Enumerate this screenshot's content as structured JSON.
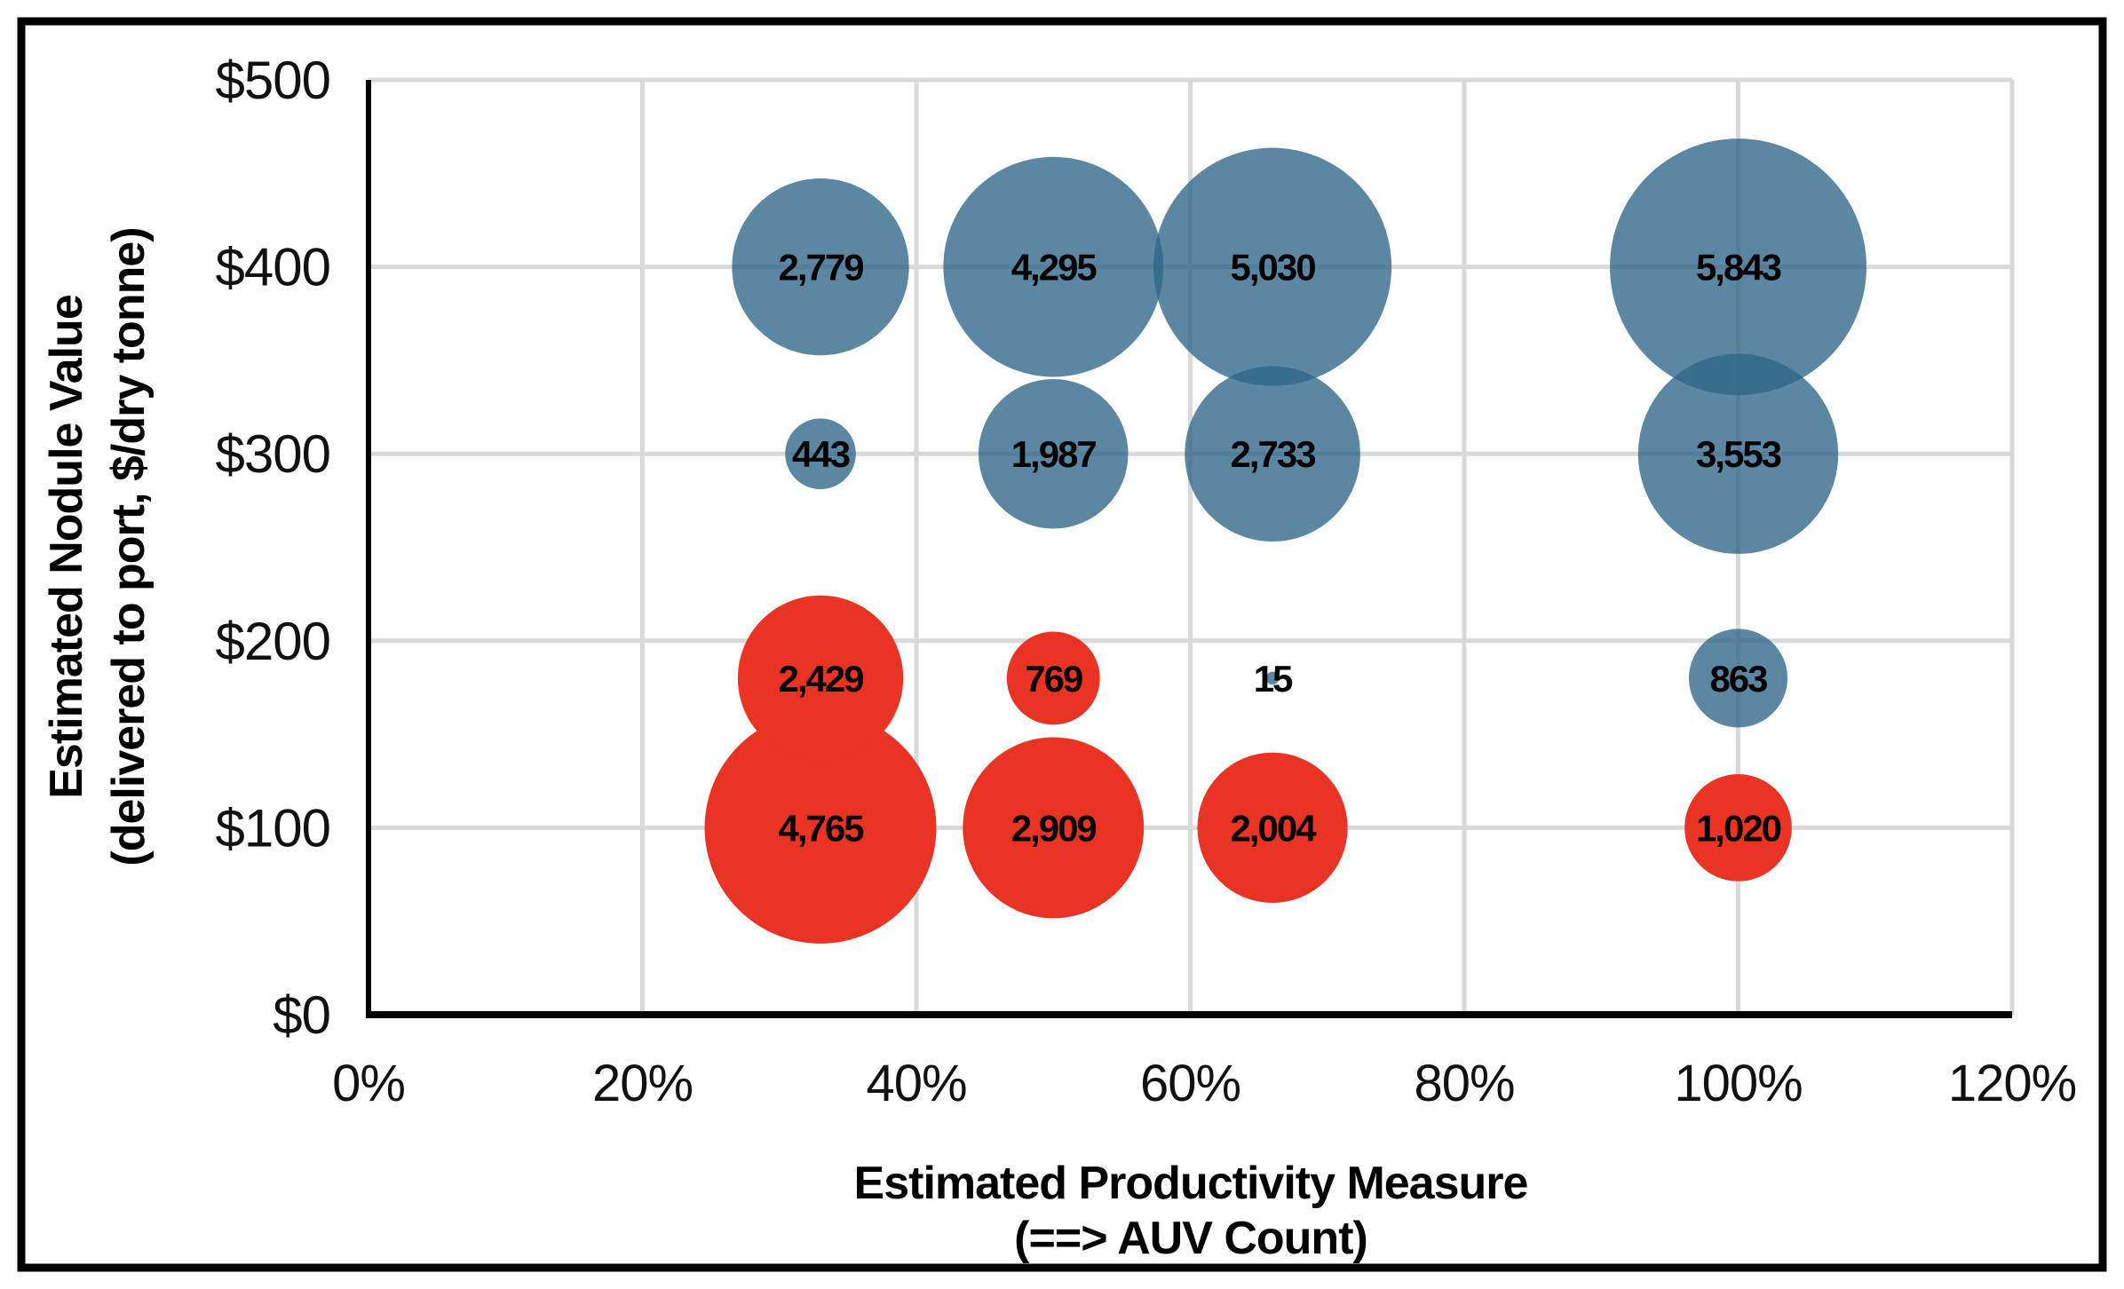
{
  "figure": {
    "background": "#FFFFFF",
    "border_color": "#000000",
    "border_width": 9
  },
  "colors": {
    "blue_apparent": "#5C87A2",
    "red": "#E93323",
    "gridline": "#D9D9D9",
    "axis_line": "#000000",
    "label_text": "#000000"
  },
  "chart_data": {
    "type": "bubble",
    "title": "",
    "xlabel_line1": "Estimated Productivity Measure",
    "xlabel_line2": "(==> AUV Count)",
    "ylabel_line1": "Estimated Nodule Value",
    "ylabel_line2": "(delivered to port, $/dry tonne)",
    "xlim": [
      0,
      120
    ],
    "ylim": [
      0,
      500
    ],
    "grid": true,
    "legend_position": "none",
    "x_ticks": [
      {
        "label": "0%",
        "value": 0
      },
      {
        "label": "20%",
        "value": 20
      },
      {
        "label": "40%",
        "value": 40
      },
      {
        "label": "60%",
        "value": 60
      },
      {
        "label": "80%",
        "value": 80
      },
      {
        "label": "100%",
        "value": 100
      },
      {
        "label": "120%",
        "value": 120
      }
    ],
    "y_ticks": [
      {
        "label": "$0",
        "value": 0
      },
      {
        "label": "$100",
        "value": 100
      },
      {
        "label": "$200",
        "value": 200
      },
      {
        "label": "$300",
        "value": 300
      },
      {
        "label": "$400",
        "value": 400
      },
      {
        "label": "$500",
        "value": 500
      }
    ],
    "series": [
      {
        "name": "blue-series",
        "color": "#2E6588",
        "fill_opacity": 0.78,
        "points": [
          {
            "x": 33,
            "y": 400,
            "value": 2779,
            "label": "2,779"
          },
          {
            "x": 50,
            "y": 400,
            "value": 4295,
            "label": "4,295"
          },
          {
            "x": 66,
            "y": 400,
            "value": 5030,
            "label": "5,030"
          },
          {
            "x": 100,
            "y": 400,
            "value": 5843,
            "label": "5,843"
          },
          {
            "x": 33,
            "y": 300,
            "value": 443,
            "label": "443"
          },
          {
            "x": 50,
            "y": 300,
            "value": 1987,
            "label": "1,987"
          },
          {
            "x": 66,
            "y": 300,
            "value": 2733,
            "label": "2,733"
          },
          {
            "x": 100,
            "y": 300,
            "value": 3553,
            "label": "3,553"
          },
          {
            "x": 66,
            "y": 180,
            "value": 15,
            "label": "15"
          },
          {
            "x": 100,
            "y": 180,
            "value": 863,
            "label": "863"
          }
        ]
      },
      {
        "name": "red-series",
        "color": "#E93323",
        "fill_opacity": 1,
        "points": [
          {
            "x": 33,
            "y": 180,
            "value": 2429,
            "label": "2,429"
          },
          {
            "x": 50,
            "y": 180,
            "value": 769,
            "label": "769"
          },
          {
            "x": 33,
            "y": 100,
            "value": 4765,
            "label": "4,765"
          },
          {
            "x": 50,
            "y": 100,
            "value": 2909,
            "label": "2,909"
          },
          {
            "x": 66,
            "y": 100,
            "value": 2004,
            "label": "2,004"
          },
          {
            "x": 100,
            "y": 100,
            "value": 1020,
            "label": "1,020"
          }
        ]
      }
    ]
  }
}
